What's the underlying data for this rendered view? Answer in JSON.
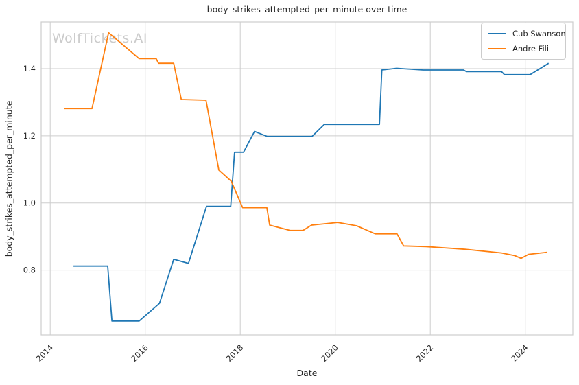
{
  "watermark": "WolfTickets.AI",
  "chart_data": {
    "type": "line",
    "title": "body_strikes_attempted_per_minute over time",
    "xlabel": "Date",
    "ylabel": "body_strikes_attempted_per_minute",
    "x_ticks": [
      2014,
      2016,
      2018,
      2020,
      2022,
      2024
    ],
    "y_ticks": [
      "0.8",
      "1.0",
      "1.2",
      "1.4"
    ],
    "xlim": [
      2013.81,
      2025.0
    ],
    "ylim": [
      0.607,
      1.539
    ],
    "grid": true,
    "grid_color": "#cdcdcd",
    "legend_position": "upper right",
    "series": [
      {
        "name": "Cub Swanson",
        "color": "#1f77b4",
        "x": [
          2014.49,
          2015.21,
          2015.3,
          2015.87,
          2016.3,
          2016.6,
          2016.91,
          2017.29,
          2017.8,
          2017.88,
          2018.07,
          2018.3,
          2018.57,
          2019.51,
          2019.77,
          2020.93,
          2020.98,
          2021.29,
          2021.85,
          2022.7,
          2022.76,
          2023.5,
          2023.56,
          2024.1,
          2024.49
        ],
        "y": [
          0.812,
          0.812,
          0.648,
          0.648,
          0.701,
          0.832,
          0.82,
          0.99,
          0.99,
          1.151,
          1.151,
          1.213,
          1.198,
          1.198,
          1.234,
          1.234,
          1.396,
          1.401,
          1.396,
          1.396,
          1.391,
          1.391,
          1.382,
          1.382,
          1.416
        ]
      },
      {
        "name": "Andre Fili",
        "color": "#ff7f0e",
        "x": [
          2014.3,
          2014.88,
          2015.23,
          2015.87,
          2016.23,
          2016.28,
          2016.6,
          2016.76,
          2017.28,
          2017.55,
          2017.81,
          2018.05,
          2018.56,
          2018.62,
          2019.05,
          2019.32,
          2019.5,
          2019.77,
          2020.05,
          2020.45,
          2020.84,
          2021.3,
          2021.44,
          2021.91,
          2022.73,
          2023.5,
          2023.78,
          2023.91,
          2024.07,
          2024.46
        ],
        "y": [
          1.281,
          1.281,
          1.507,
          1.43,
          1.43,
          1.416,
          1.416,
          1.308,
          1.306,
          1.098,
          1.065,
          0.986,
          0.986,
          0.934,
          0.918,
          0.918,
          0.934,
          0.938,
          0.942,
          0.932,
          0.908,
          0.908,
          0.872,
          0.87,
          0.862,
          0.851,
          0.843,
          0.835,
          0.847,
          0.853
        ]
      }
    ]
  }
}
